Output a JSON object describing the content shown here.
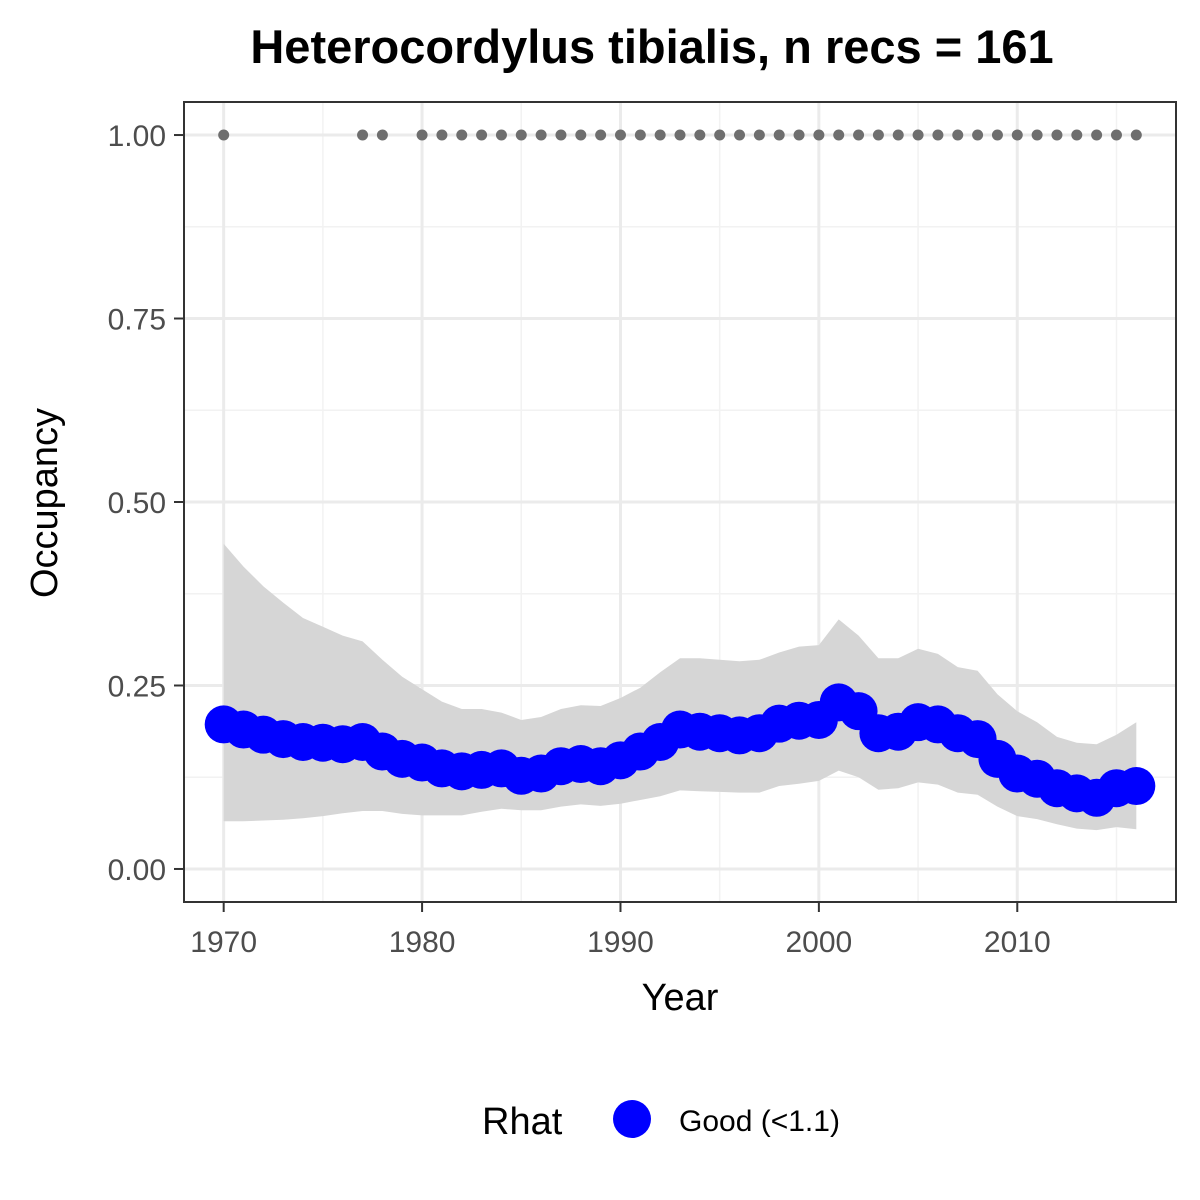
{
  "chart_data": {
    "type": "line",
    "title": "Heterocordylus tibialis, n recs = 161",
    "xlabel": "Year",
    "ylabel": "Occupancy",
    "xlim": [
      1968,
      2018
    ],
    "ylim": [
      -0.045,
      1.045
    ],
    "grid": true,
    "x_ticks": [
      1970,
      1980,
      1990,
      2000,
      2010
    ],
    "x_tick_labels": [
      "1970",
      "1980",
      "1990",
      "2000",
      "2010"
    ],
    "y_ticks": [
      0,
      0.25,
      0.5,
      0.75,
      1.0
    ],
    "y_tick_labels": [
      "0.00",
      "0.25",
      "0.50",
      "0.75",
      "1.00"
    ],
    "x": [
      1970,
      1971,
      1972,
      1973,
      1974,
      1975,
      1976,
      1977,
      1978,
      1979,
      1980,
      1981,
      1982,
      1983,
      1984,
      1985,
      1986,
      1987,
      1988,
      1989,
      1990,
      1991,
      1992,
      1993,
      1994,
      1995,
      1996,
      1997,
      1998,
      1999,
      2000,
      2001,
      2002,
      2003,
      2004,
      2005,
      2006,
      2007,
      2008,
      2009,
      2010,
      2011,
      2012,
      2013,
      2014,
      2015,
      2016
    ],
    "series": [
      {
        "values": [
          0.197,
          0.19,
          0.183,
          0.177,
          0.173,
          0.172,
          0.17,
          0.173,
          0.16,
          0.15,
          0.145,
          0.137,
          0.133,
          0.135,
          0.137,
          0.127,
          0.13,
          0.14,
          0.143,
          0.14,
          0.148,
          0.16,
          0.173,
          0.19,
          0.187,
          0.185,
          0.182,
          0.185,
          0.198,
          0.202,
          0.203,
          0.227,
          0.215,
          0.185,
          0.187,
          0.2,
          0.197,
          0.185,
          0.177,
          0.15,
          0.13,
          0.123,
          0.11,
          0.103,
          0.097,
          0.11,
          0.113
        ],
        "lower": [
          0.065,
          0.065,
          0.066,
          0.067,
          0.069,
          0.072,
          0.076,
          0.079,
          0.079,
          0.075,
          0.073,
          0.073,
          0.073,
          0.078,
          0.082,
          0.08,
          0.08,
          0.085,
          0.088,
          0.086,
          0.089,
          0.094,
          0.099,
          0.107,
          0.106,
          0.105,
          0.104,
          0.104,
          0.113,
          0.116,
          0.12,
          0.134,
          0.125,
          0.108,
          0.11,
          0.118,
          0.115,
          0.104,
          0.101,
          0.085,
          0.072,
          0.068,
          0.061,
          0.055,
          0.053,
          0.057,
          0.054
        ],
        "upper": [
          0.443,
          0.412,
          0.385,
          0.363,
          0.342,
          0.33,
          0.318,
          0.31,
          0.285,
          0.262,
          0.245,
          0.228,
          0.218,
          0.218,
          0.213,
          0.203,
          0.207,
          0.218,
          0.223,
          0.222,
          0.233,
          0.247,
          0.268,
          0.287,
          0.287,
          0.285,
          0.283,
          0.285,
          0.295,
          0.303,
          0.305,
          0.34,
          0.318,
          0.287,
          0.287,
          0.3,
          0.293,
          0.275,
          0.27,
          0.238,
          0.215,
          0.2,
          0.18,
          0.172,
          0.17,
          0.183,
          0.2
        ],
        "color": "#0000ff",
        "band_color": "#d6d6d6"
      }
    ],
    "records_row": {
      "y": 1.0,
      "years": [
        1970,
        1977,
        1978,
        1980,
        1981,
        1982,
        1983,
        1984,
        1985,
        1986,
        1987,
        1988,
        1989,
        1990,
        1991,
        1992,
        1993,
        1994,
        1995,
        1996,
        1997,
        1998,
        1999,
        2000,
        2001,
        2002,
        2003,
        2004,
        2005,
        2006,
        2007,
        2008,
        2009,
        2010,
        2011,
        2012,
        2013,
        2014,
        2015,
        2016
      ],
      "color": "#6e6e6e"
    },
    "legend": {
      "position": "bottom",
      "title": "Rhat",
      "items": [
        {
          "label": "Good (<1.1)",
          "color": "#0000ff"
        }
      ]
    }
  }
}
